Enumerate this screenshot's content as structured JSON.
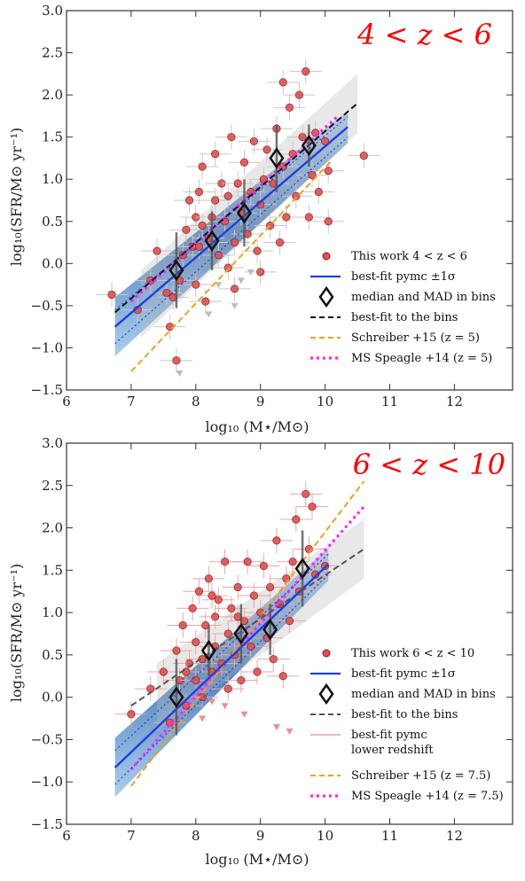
{
  "colors": {
    "points": "#e15050",
    "point_edge": "#8b1a1a",
    "pymc_line": "#1f3fe0",
    "band": "#2f6fb5",
    "bins_line": "#111111",
    "schreiber": "#f0a020",
    "speagle": "#ff22ff",
    "grey_band": "#bdbdbd"
  },
  "chart_data": [
    {
      "type": "scatter",
      "title": "4 < z < 6",
      "xlabel": "log₁₀ (M⋆/M⊙)",
      "ylabel": "log₁₀(SFR/M⊙ yr⁻¹)",
      "xlim": [
        6,
        12.9
      ],
      "ylim": [
        -1.5,
        3.0
      ],
      "xticks": [
        "6",
        "7",
        "8",
        "9",
        "10",
        "11",
        "12"
      ],
      "yticks": [
        "−1.5",
        "−1.0",
        "−0.5",
        "0.0",
        "0.5",
        "1.0",
        "1.5",
        "2.0",
        "2.5",
        "3.0"
      ],
      "legend_position": "lower-right",
      "legend": [
        {
          "label": "This work 4 < z < 6",
          "kind": "marker"
        },
        {
          "label": "best-fit pymc ±1σ",
          "kind": "solid-blue"
        },
        {
          "label": "median and MAD in bins",
          "kind": "diamond"
        },
        {
          "label": "best-fit to the bins",
          "kind": "dashed-black"
        },
        {
          "label": "Schreiber +15 (z = 5)",
          "kind": "dashed-orange"
        },
        {
          "label": "MS Speagle +14 (z = 5)",
          "kind": "dotted-magenta"
        }
      ],
      "fits": {
        "pymc": {
          "x": [
            6.75,
            10.35
          ],
          "y": [
            -0.75,
            1.62
          ]
        },
        "bins": {
          "x": [
            6.75,
            10.5
          ],
          "y": [
            -0.58,
            1.9
          ]
        },
        "schreiber": {
          "x": [
            7.0,
            10.1
          ],
          "y": [
            -1.28,
            1.22
          ]
        },
        "speagle": {
          "x": [
            7.0,
            10.2
          ],
          "y": [
            -0.45,
            1.75
          ]
        }
      },
      "binned": [
        {
          "x": 7.7,
          "y": -0.08,
          "err": 0.45
        },
        {
          "x": 8.25,
          "y": 0.27,
          "err": 0.35
        },
        {
          "x": 8.75,
          "y": 0.6,
          "err": 0.4
        },
        {
          "x": 9.25,
          "y": 1.25,
          "err": 0.4
        },
        {
          "x": 9.75,
          "y": 1.4,
          "err": 0.25
        }
      ],
      "points": [
        [
          6.7,
          -0.37
        ],
        [
          7.1,
          -0.55
        ],
        [
          7.3,
          -0.2
        ],
        [
          7.4,
          0.15
        ],
        [
          7.55,
          -0.35
        ],
        [
          7.6,
          -0.75
        ],
        [
          7.65,
          -0.4
        ],
        [
          7.7,
          -1.15
        ],
        [
          7.75,
          -0.2
        ],
        [
          7.8,
          0.1
        ],
        [
          7.85,
          0.4
        ],
        [
          7.9,
          0.75
        ],
        [
          7.95,
          0.2
        ],
        [
          8.0,
          -0.25
        ],
        [
          8.0,
          0.55
        ],
        [
          8.05,
          0.85
        ],
        [
          8.1,
          0.45
        ],
        [
          8.1,
          1.15
        ],
        [
          8.15,
          -0.45
        ],
        [
          8.2,
          0.3
        ],
        [
          8.25,
          0.55
        ],
        [
          8.3,
          0.75
        ],
        [
          8.3,
          1.3
        ],
        [
          8.35,
          0.1
        ],
        [
          8.4,
          0.95
        ],
        [
          8.45,
          0.5
        ],
        [
          8.5,
          -0.05
        ],
        [
          8.5,
          0.8
        ],
        [
          8.55,
          1.5
        ],
        [
          8.6,
          0.25
        ],
        [
          8.65,
          0.95
        ],
        [
          8.7,
          0.6
        ],
        [
          8.75,
          1.2
        ],
        [
          8.8,
          0.35
        ],
        [
          8.85,
          0.85
        ],
        [
          8.9,
          1.45
        ],
        [
          8.95,
          0.15
        ],
        [
          9.0,
          0.7
        ],
        [
          9.05,
          1.0
        ],
        [
          9.1,
          1.35
        ],
        [
          9.15,
          0.45
        ],
        [
          9.2,
          0.95
        ],
        [
          9.25,
          1.6
        ],
        [
          9.3,
          0.25
        ],
        [
          9.35,
          1.15
        ],
        [
          9.4,
          0.55
        ],
        [
          9.45,
          1.85
        ],
        [
          9.5,
          1.3
        ],
        [
          9.55,
          0.8
        ],
        [
          9.6,
          2.0
        ],
        [
          9.65,
          1.5
        ],
        [
          9.7,
          2.28
        ],
        [
          9.75,
          0.55
        ],
        [
          9.8,
          1.05
        ],
        [
          9.85,
          1.55
        ],
        [
          9.9,
          0.85
        ],
        [
          10.0,
          1.45
        ],
        [
          10.05,
          1.1
        ],
        [
          10.05,
          0.5
        ],
        [
          10.6,
          1.28
        ],
        [
          9.35,
          2.15
        ],
        [
          8.05,
          0.2
        ],
        [
          8.6,
          -0.3
        ],
        [
          9.0,
          -0.1
        ]
      ],
      "upper_limits": [
        [
          7.75,
          -1.3
        ],
        [
          8.2,
          -0.6
        ],
        [
          8.6,
          -0.5
        ],
        [
          8.85,
          -0.1
        ],
        [
          8.35,
          -0.25
        ],
        [
          8.7,
          -0.2
        ]
      ]
    },
    {
      "type": "scatter",
      "title": "6 < z < 10",
      "xlabel": "log₁₀ (M⋆/M⊙)",
      "ylabel": "log₁₀(SFR/M⊙ yr⁻¹)",
      "xlim": [
        6,
        12.9
      ],
      "ylim": [
        -1.5,
        3.0
      ],
      "xticks": [
        "6",
        "7",
        "8",
        "9",
        "10",
        "11",
        "12"
      ],
      "yticks": [
        "−1.5",
        "−1.0",
        "−0.5",
        "0.0",
        "0.5",
        "1.0",
        "1.5",
        "2.0",
        "2.5",
        "3.0"
      ],
      "legend_position": "lower-right",
      "legend": [
        {
          "label": "This work 6 < z < 10",
          "kind": "marker"
        },
        {
          "label": "best-fit pymc ±1σ",
          "kind": "solid-blue"
        },
        {
          "label": "median and MAD in bins",
          "kind": "diamond"
        },
        {
          "label": "best-fit to the bins",
          "kind": "dashed-grey"
        },
        {
          "label": "best-fit pymc",
          "label2": "lower redshift",
          "kind": "solid-pink"
        },
        {
          "label": "Schreiber +15 (z = 7.5)",
          "kind": "dashed-orange"
        },
        {
          "label": "MS Speagle +14 (z = 7.5)",
          "kind": "dotted-magenta"
        }
      ],
      "fits": {
        "pymc": {
          "x": [
            6.75,
            10.05
          ],
          "y": [
            -0.83,
            1.57
          ]
        },
        "bins": {
          "x": [
            7.0,
            10.6
          ],
          "y": [
            -0.1,
            1.75
          ]
        },
        "schreiber": {
          "x": [
            7.0,
            10.6
          ],
          "y": [
            -1.05,
            2.55
          ]
        },
        "speagle": {
          "x": [
            7.0,
            10.6
          ],
          "y": [
            -0.85,
            2.25
          ]
        }
      },
      "binned": [
        {
          "x": 7.7,
          "y": 0.0,
          "err": 0.45
        },
        {
          "x": 8.2,
          "y": 0.55,
          "err": 0.3
        },
        {
          "x": 8.7,
          "y": 0.75,
          "err": 0.35
        },
        {
          "x": 9.15,
          "y": 0.8,
          "err": 0.3
        },
        {
          "x": 9.65,
          "y": 1.52,
          "err": 0.45
        }
      ],
      "points": [
        [
          7.0,
          -0.2
        ],
        [
          7.3,
          0.1
        ],
        [
          7.5,
          0.3
        ],
        [
          7.6,
          -0.3
        ],
        [
          7.7,
          0.55
        ],
        [
          7.75,
          0.2
        ],
        [
          7.8,
          0.85
        ],
        [
          7.85,
          -0.1
        ],
        [
          7.9,
          0.4
        ],
        [
          7.95,
          1.05
        ],
        [
          8.0,
          0.2
        ],
        [
          8.0,
          0.65
        ],
        [
          8.05,
          1.25
        ],
        [
          8.1,
          0.0
        ],
        [
          8.1,
          0.45
        ],
        [
          8.15,
          0.85
        ],
        [
          8.2,
          1.4
        ],
        [
          8.25,
          0.3
        ],
        [
          8.3,
          0.95
        ],
        [
          8.3,
          0.6
        ],
        [
          8.35,
          1.15
        ],
        [
          8.4,
          0.4
        ],
        [
          8.45,
          1.6
        ],
        [
          8.5,
          0.75
        ],
        [
          8.5,
          0.1
        ],
        [
          8.55,
          1.05
        ],
        [
          8.6,
          0.5
        ],
        [
          8.65,
          1.3
        ],
        [
          8.7,
          0.2
        ],
        [
          8.75,
          0.9
        ],
        [
          8.8,
          1.6
        ],
        [
          8.85,
          0.6
        ],
        [
          8.9,
          1.2
        ],
        [
          8.95,
          0.3
        ],
        [
          9.0,
          1.0
        ],
        [
          9.05,
          1.55
        ],
        [
          9.1,
          0.7
        ],
        [
          9.15,
          1.3
        ],
        [
          9.2,
          0.45
        ],
        [
          9.25,
          1.85
        ],
        [
          9.3,
          1.1
        ],
        [
          9.35,
          0.25
        ],
        [
          9.4,
          1.4
        ],
        [
          9.45,
          0.9
        ],
        [
          9.5,
          1.6
        ],
        [
          9.55,
          2.1
        ],
        [
          9.6,
          1.25
        ],
        [
          9.7,
          2.4
        ],
        [
          9.75,
          1.75
        ],
        [
          9.8,
          2.25
        ],
        [
          9.85,
          1.45
        ],
        [
          10.0,
          1.55
        ],
        [
          7.85,
          0.3
        ],
        [
          8.25,
          1.2
        ],
        [
          8.65,
          0.95
        ]
      ],
      "upper_limits": [
        [
          7.7,
          -0.35
        ],
        [
          8.25,
          -0.05
        ],
        [
          8.45,
          -0.1
        ],
        [
          8.75,
          -0.2
        ],
        [
          9.25,
          -0.35
        ],
        [
          9.45,
          -0.4
        ],
        [
          8.1,
          -0.25
        ]
      ]
    }
  ]
}
